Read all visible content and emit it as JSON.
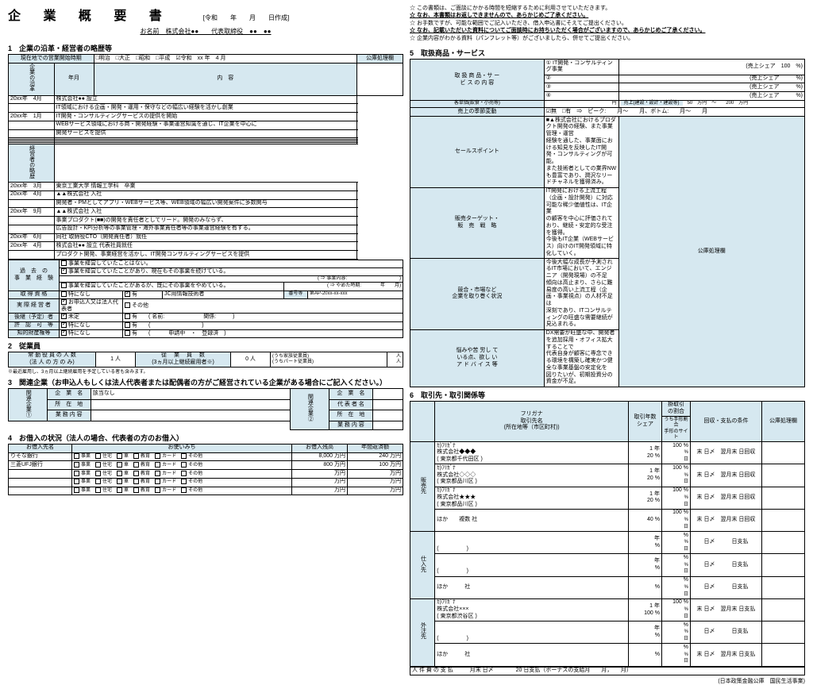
{
  "page": {
    "title": "企 業 概 要 書",
    "date_label": "[令和　　年　　月　　日作成]",
    "name_line": "お名前　株式会社●●　　代表取締役　●●　●●",
    "footer": "(日本政策金融公庫　国民生活事業)"
  },
  "s1": {
    "heading": "1　企業の沿革・経営者の略歴等",
    "start_label": "現在地での営業開始時期",
    "eras": "□明治　□大正　□昭和　□平成　☑令和　xx 年　4 月",
    "col_ym": "年月",
    "col_naiyo": "内　容",
    "col_kouko": "公庫処理欄",
    "side1": "企業の沿革",
    "side2": "経営者の略歴",
    "rows1": [
      [
        "20xx年　4月",
        "株式会社●● 設立"
      ],
      [
        "",
        "IT領域における企画・開発・運用・保守などの幅広い経験を活かし創業"
      ],
      [
        "20xx年　1月",
        "IT開発・コンサルティングサービスの提供を開始"
      ],
      [
        "",
        "WEBサービス領域における商・開発経験・事業運営知識を通じ、IT企業を中心に"
      ],
      [
        "",
        "開発サービスを提供"
      ],
      [
        "",
        ""
      ],
      [
        "",
        ""
      ],
      [
        "",
        ""
      ],
      [
        "",
        ""
      ]
    ],
    "rows2": [
      [
        "20xx年　3月",
        "東京工業大学 情報工学科　卒業"
      ],
      [
        "20xx年　4月",
        "▲▲株式会社 入社"
      ],
      [
        "",
        "開発者・PMとしてアプリ・WEBサービス等、WEB領域の幅広い開発案件に多数関与"
      ],
      [
        "20xx年　9月",
        "▲▲株式会社 入社"
      ],
      [
        "",
        "事業プロダクト(■■)の開発を責任者としてリード。開発のみならず、"
      ],
      [
        "",
        "広告設計・KPI分析等の事業管理・海外事業責任者等の事業運営経験を有する。"
      ],
      [
        "20xx年　6月",
        "同社 取締役CTO（開発責任者）就任"
      ],
      [
        "20xx年　4月",
        "株式会社●● 設立 代表社員就任"
      ],
      [
        "",
        "プロダクト開発、事業経営を活かし、IT開発コンサルティングサービスを提供"
      ]
    ],
    "past_label": "過　去　の\n事　業　経　験",
    "past_opt1": "事業を経営していたことはない。",
    "past_opt2": "事業を経営していたことがあり、現在もその事業を続けている。",
    "past_paren1": "( ⇒ 事業内容:　　　　　　　　　　　)",
    "past_opt3": "事業を経営していたことがあるが、既にその事業をやめている。",
    "past_paren2": "( ⇒ やめた時期:　　　　年　　月)",
    "shikaku_l": "取 得 資 格",
    "shikaku_v": "特になし",
    "shikaku_r": "有　　　",
    "shikaku_num": "JC用情報技術者",
    "bango": "番号等",
    "bango_v": "第AP-20xx-xx-xxx",
    "jissitsu_l": "実 際 経 営 者",
    "jissitsu_v": "お申込人又は法人代表者",
    "jissitsu_r": "その他",
    "kokei_l": "後継（予定）者",
    "kokei_v": "未定",
    "kokei_r": "有　　( 名前:　　　　　　　関係:　　　)",
    "kyoka_l": "許　認　可　等",
    "kyoka_v": "特になし",
    "kyoka_r": "有　　( 　　　　　　　　　)",
    "chizai_l": "知的財産権等",
    "chizai_v": "特になし",
    "chizai_r": "有　　( 　　　申請中　・　登録済　)"
  },
  "s2": {
    "heading": "2　従業員",
    "label1": "常 勤 役 員 の 人 数\n(法 人 の 方 の み)",
    "val1": "1 人",
    "label2": "従　 業　 員　 数\n(3ヵ月以上継続雇用者※)",
    "val2": "0 人",
    "label3a": "(うち家族従業員)",
    "label3b": "(うちパート従業員)",
    "unit": "人\n人",
    "note": "※最近雇用し、3ヵ月以上継続雇用を予定している者も含みます。"
  },
  "s3": {
    "heading": "3　関連企業（お申込人もしくは法人代表者または配偶者の方がご経営されている企業がある場合にご記入ください。）",
    "l1": "企　業　名",
    "l2": "所　在　地",
    "l3": "業 務 内 容",
    "r1": "企　業　名",
    "r2": "代 表 者 名",
    "r3": "所　在　地",
    "r4": "業 務 内 容",
    "v1": "該当なし"
  },
  "s4": {
    "heading": "4　お借入の状況（法人の場合、代表者の方のお借入）",
    "c1": "お借入先名",
    "c2": "お使いみち",
    "c3": "お借入残高",
    "c4": "年間返済額",
    "opts": "事業　　住宅　　車　　教育　　カード　　その他",
    "rows": [
      [
        "りそな銀行",
        "8,000 万円",
        "240 万円"
      ],
      [
        "三菱UFJ銀行",
        "800 万円",
        "100 万円"
      ],
      [
        "",
        "万円",
        "万円"
      ],
      [
        "",
        "万円",
        "万円"
      ],
      [
        "",
        "万円",
        "万円"
      ]
    ]
  },
  "r_notes": [
    "この書類は、ご面談にかかる時間を短縮するために利用させていただきます。",
    "なお、本書類はお返しできませんので、あらかじめご了承ください。",
    "お手数ですが、可能な範囲でご記入いただき、借入申込書にそえてご提出ください。",
    "なお、記載いただいた資料についてご面談時にお持ちいただく場合がございますので、あらかじめご了承ください。",
    "企業内容がわかる資料（パンフレット等）がございましたら、併せてご提出ください。"
  ],
  "s5": {
    "heading": "5　取扱商品・サービス",
    "l_service": "取 扱 商 品・サ ー\nビ ス の 内 容",
    "s1": "① IT開発・コンサルティング事業",
    "s1r": "(売上シェア　100　%)",
    "s2": "②",
    "s2r": "(売上シェア　　　%)",
    "s3": "③",
    "s3r": "(売上シェア　　　%)",
    "s4": "④",
    "s4r": "(売上シェア　　　%)",
    "kyakul": "客単価(飲食・小売等)",
    "kyakuv": "円",
    "sekil": "売上(建設・設計・建設等)",
    "sekiv": "50　万円　〜　　200　万円",
    "kisetsu_l": "売上の季節変動",
    "kisetsu_v": "☑無　□有　⇒　ピーク:　　月〜　　月、ボトム:　　月〜　　月",
    "sp_l": "セールスポイント",
    "sp_v": "■▲株式会社におけるプロダクト開発の経験、また事業管理・運営\n経験を通した、事業面における知見を反映したIT開発・コンサルティングが可能。\nまた技術者としての業界NWも豊富であり、潤沢なリードチャネルを獲得済み。",
    "tgt_l": "販売ターゲット・\n販　売　戦　略",
    "tgt_v": "IT開発における上流工程（企画・設計開発）に対応可能な稀少価値性は、IT企業\nの顧客を中心に評価されており、継続・安定的な受注を獲得。\n今後もIT企業（WEBサービス）向けのIT開発領域に特化していく。",
    "comp_l": "競合・市場など\n企業を取り巻く状況",
    "comp_v": "今後大幅な成長が予測されるIT市場において、エンジニア（開発現場）の不足\n傾向は高止まり、さらに難易度の高い上流工程（企画・事業視点）の人材不足は\n深刻であり、ITコンサルティングの旺盛な需要継続が見込まれる。",
    "adv_l": "悩みや苦 労し て\nいる点、欲し い\nア ド バ イ ス 等",
    "adv_v": "DX需要が旺盛な中、開発者を追加採用・オフィス拡大することで\n代表自身が顧客に専念できる環境を構築し確実かつ健全な事業基盤の安定化を\n図りたいが、初期投資分の資金が不足。",
    "kouko": "公庫処理欄"
  },
  "s6": {
    "heading": "6　取引先・取引関係等",
    "h1": "フリガナ\n取引先名\n(所在地等（市区町村))",
    "h2": "取引年数\nシェア",
    "h3": "掛取引\nの割合",
    "h4": "回収・支払の条件",
    "h5": "公庫処理欄",
    "sh": "うち手形割合\n手形のサイト",
    "side_han": "販売先",
    "side_shi": "仕入先",
    "side_gai": "外注先",
    "rows_han": [
      [
        "ｶ)ﾌﾘｶﾞﾅ\n株式会社◆◆◆\n( 東京都千代田区 )",
        "1 年\n20 %",
        "100 %",
        "%\n日",
        "末 日〆　翌月末 日回収"
      ],
      [
        "ｶ)ﾌﾘｶﾞﾅ\n株式会社◇◇◇\n( 東京都品川区 )",
        "1 年\n20 %",
        "100 %",
        "%\n日",
        "末 日〆　翌月末 日回収"
      ],
      [
        "ｶ)ﾌﾘｶﾞﾅ\n株式会社★★★\n( 東京都品川区 )",
        "1 年\n20 %",
        "100 %",
        "%\n日",
        "末 日〆　翌月末 日回収"
      ],
      [
        "ほか　　複数 社",
        "40 %",
        "100 %",
        "%\n日",
        "末 日〆　翌月末 日回収"
      ]
    ],
    "rows_shi": [
      [
        "\n\n(　　　　　)",
        "年\n%",
        "%",
        "%\n日",
        "日〆　　　日支払"
      ],
      [
        "\n\n(　　　　　)",
        "年\n%",
        "%",
        "%\n日",
        "日〆　　　日支払"
      ],
      [
        "ほか　　　社",
        "%",
        "%",
        "%\n日",
        "日〆　　　日支払"
      ]
    ],
    "rows_gai": [
      [
        "ｶ)ﾌﾘｶﾞﾅ\n株式会社×××\n( 東京都渋谷区 )",
        "1 年\n100 %",
        "100 %",
        "%\n日",
        "末 日〆　翌月末 日支払"
      ],
      [
        "\n\n(　　　　　)",
        "年\n%",
        "%",
        "%\n日",
        "日〆　　　日支払"
      ],
      [
        "ほか　　　社",
        "%",
        "%",
        "%\n日",
        "末 日〆　翌月末 日支払"
      ]
    ],
    "jinken": "人 件 費 の 支 払　　　月末 日〆　　　　20 日支払（ボーナスの支給月　　月，　　月）"
  }
}
